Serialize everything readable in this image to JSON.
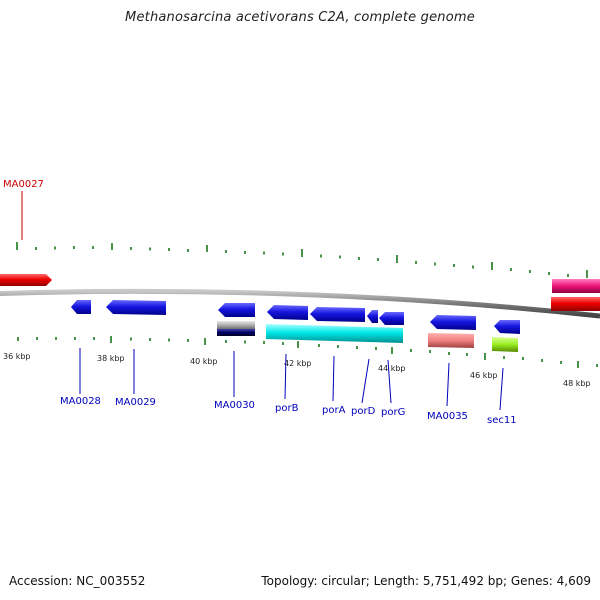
{
  "title": "Methanosarcina acetivorans C2A, complete genome",
  "footer": {
    "accession": "Accession: NC_003552",
    "summary": "Topology: circular; Length: 5,751,492 bp; Genes: 4,609"
  },
  "colors": {
    "backbone": "#7a7a7a",
    "tick": "#1a7a1a",
    "forward_label": "#cc0000",
    "reverse_label": "#0000bb",
    "gene_blue": "#1111dd",
    "gene_red": "#ee0000",
    "gene_cyan": "#00e5e5",
    "gene_salmon": "#ee8080",
    "gene_lime": "#99ee22",
    "gene_magenta": "#ee1177",
    "gene_gray": "#b0b0b0",
    "gene_navy": "#000066"
  },
  "scale_labels": [
    "36 kbp",
    "38 kbp",
    "40 kbp",
    "42 kbp",
    "44 kbp",
    "46 kbp",
    "48 kbp"
  ],
  "gene_labels": [
    {
      "name": "MA0027",
      "strand": "forward"
    },
    {
      "name": "MA0028",
      "strand": "reverse"
    },
    {
      "name": "MA0029",
      "strand": "reverse"
    },
    {
      "name": "MA0030",
      "strand": "reverse"
    },
    {
      "name": "porB",
      "strand": "reverse"
    },
    {
      "name": "porA",
      "strand": "reverse"
    },
    {
      "name": "porD",
      "strand": "reverse"
    },
    {
      "name": "porG",
      "strand": "reverse"
    },
    {
      "name": "MA0035",
      "strand": "reverse"
    },
    {
      "name": "sec11",
      "strand": "reverse"
    }
  ]
}
